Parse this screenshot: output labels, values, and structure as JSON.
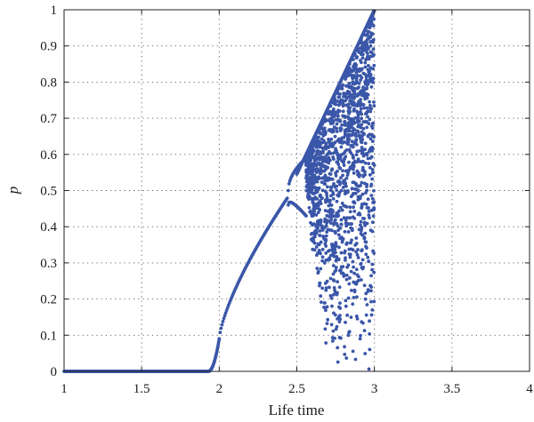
{
  "chart_data": {
    "type": "scatter",
    "xlabel": "Life time",
    "ylabel": "p",
    "xlim": [
      1,
      4
    ],
    "ylim": [
      0,
      1
    ],
    "xticks": [
      "1",
      "1.5",
      "2",
      "2.5",
      "3",
      "3.5",
      "4"
    ],
    "yticks": [
      "0",
      "0.1",
      "0.2",
      "0.3",
      "0.4",
      "0.5",
      "0.6",
      "0.7",
      "0.8",
      "0.9",
      "1"
    ],
    "grid": true,
    "legend": "none",
    "marker_color": "#3a56a8",
    "series": [
      {
        "description_points": [
          [
            1.0,
            0.0
          ],
          [
            1.5,
            0.0
          ],
          [
            1.9,
            0.0
          ],
          [
            1.95,
            0.004
          ],
          [
            1.98,
            0.03
          ],
          [
            2.0,
            0.09
          ],
          [
            2.05,
            0.19
          ],
          [
            2.1,
            0.25
          ],
          [
            2.2,
            0.33
          ],
          [
            2.3,
            0.41
          ],
          [
            2.4,
            0.46
          ],
          [
            2.44,
            0.48
          ],
          [
            2.45,
            0.37
          ],
          [
            2.46,
            0.5
          ],
          [
            2.5,
            0.56
          ],
          [
            2.55,
            0.6
          ],
          [
            2.6,
            0.66
          ],
          [
            2.7,
            0.8
          ],
          [
            2.8,
            0.86
          ],
          [
            2.9,
            0.93
          ],
          [
            3.0,
            1.0
          ]
        ],
        "regimes": [
          {
            "x_range": [
              1.0,
              1.93
            ],
            "kind": "flat",
            "p": 0
          },
          {
            "x_range": [
              1.93,
              2.44
            ],
            "kind": "fixed-point",
            "p_end": 0.48
          },
          {
            "x_range": [
              2.44,
              2.56
            ],
            "kind": "period-2",
            "upper_end": 0.59,
            "lower_end": 0.5
          },
          {
            "x_range": [
              2.56,
              3.0
            ],
            "kind": "chaotic",
            "upper_envelope": [
              [
                2.56,
                0.6
              ],
              [
                3.0,
                1.0
              ]
            ],
            "lower_edge": [
              [
                2.56,
                0.5
              ],
              [
                2.7,
                0.0
              ]
            ]
          }
        ]
      }
    ]
  }
}
